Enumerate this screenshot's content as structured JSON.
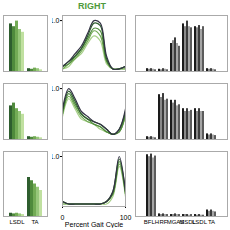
{
  "chart_data": [
    {
      "type": "bar",
      "categories": [
        "LSDL",
        "TA"
      ],
      "ylim": [
        0,
        1
      ],
      "tick_labels": false,
      "series": [
        {
          "color": "#2e5e2e",
          "values": [
            0.85,
            0.05
          ]
        },
        {
          "color": "#4f8a3c",
          "values": [
            0.8,
            0.04
          ]
        },
        {
          "color": "#73ab55",
          "values": [
            0.9,
            0.06
          ]
        },
        {
          "color": "#97c77a",
          "values": [
            0.75,
            0.05
          ]
        },
        {
          "color": "#c0e0a0",
          "values": [
            0.7,
            0.03
          ]
        }
      ]
    },
    {
      "type": "bar",
      "categories": [
        "LSDL",
        "TA"
      ],
      "ylim": [
        0,
        1
      ],
      "tick_labels": false,
      "series": [
        {
          "color": "#2e5e2e",
          "values": [
            0.6,
            0.05
          ]
        },
        {
          "color": "#4f8a3c",
          "values": [
            0.65,
            0.04
          ]
        },
        {
          "color": "#73ab55",
          "values": [
            0.55,
            0.05
          ]
        },
        {
          "color": "#97c77a",
          "values": [
            0.5,
            0.04
          ]
        },
        {
          "color": "#c0e0a0",
          "values": [
            0.45,
            0.03
          ]
        }
      ]
    },
    {
      "type": "bar",
      "categories": [
        "LSDL",
        "TA"
      ],
      "ylim": [
        0,
        1
      ],
      "tick_labels": "x",
      "series": [
        {
          "color": "#2e5e2e",
          "values": [
            0.05,
            0.6
          ]
        },
        {
          "color": "#4f8a3c",
          "values": [
            0.04,
            0.55
          ]
        },
        {
          "color": "#73ab55",
          "values": [
            0.05,
            0.5
          ]
        },
        {
          "color": "#97c77a",
          "values": [
            0.04,
            0.45
          ]
        },
        {
          "color": "#c0e0a0",
          "values": [
            0.03,
            0.4
          ]
        }
      ]
    },
    {
      "type": "line",
      "title": "RIGHT",
      "x": [
        0,
        10,
        20,
        30,
        40,
        50,
        60,
        70,
        80,
        90,
        100
      ],
      "xlim": [
        0,
        100
      ],
      "ylim": [
        0,
        1.1
      ],
      "yticks": [
        1
      ],
      "tick_labels": "y",
      "series": [
        {
          "color": "#333344",
          "values": [
            0.1,
            0.2,
            0.35,
            0.5,
            0.75,
            1.0,
            0.95,
            0.3,
            0.05,
            0.05,
            0.1
          ]
        },
        {
          "color": "#2e5e2e",
          "values": [
            0.1,
            0.2,
            0.3,
            0.45,
            0.7,
            0.95,
            0.9,
            0.25,
            0.05,
            0.05,
            0.1
          ]
        },
        {
          "color": "#4f8a3c",
          "values": [
            0.1,
            0.15,
            0.3,
            0.45,
            0.65,
            0.85,
            0.8,
            0.2,
            0.05,
            0.05,
            0.1
          ]
        },
        {
          "color": "#73ab55",
          "values": [
            0.05,
            0.15,
            0.25,
            0.4,
            0.6,
            0.8,
            0.7,
            0.2,
            0.05,
            0.05,
            0.05
          ]
        },
        {
          "color": "#a8d08a",
          "values": [
            0.05,
            0.1,
            0.25,
            0.35,
            0.55,
            0.7,
            0.6,
            0.15,
            0.05,
            0.05,
            0.05
          ]
        }
      ]
    },
    {
      "type": "line",
      "x": [
        0,
        10,
        20,
        30,
        40,
        50,
        60,
        70,
        80,
        90,
        100
      ],
      "xlim": [
        0,
        100
      ],
      "ylim": [
        0,
        1.1
      ],
      "yticks": [
        1
      ],
      "tick_labels": "y",
      "series": [
        {
          "color": "#333344",
          "values": [
            0.6,
            1.0,
            0.8,
            0.55,
            0.45,
            0.35,
            0.3,
            0.2,
            0.1,
            0.2,
            0.6
          ]
        },
        {
          "color": "#2e5e2e",
          "values": [
            0.55,
            0.95,
            0.75,
            0.5,
            0.4,
            0.35,
            0.3,
            0.2,
            0.1,
            0.2,
            0.55
          ]
        },
        {
          "color": "#4f8a3c",
          "values": [
            0.5,
            0.9,
            0.7,
            0.5,
            0.4,
            0.3,
            0.25,
            0.15,
            0.1,
            0.15,
            0.5
          ]
        },
        {
          "color": "#73ab55",
          "values": [
            0.5,
            0.85,
            0.65,
            0.45,
            0.35,
            0.3,
            0.25,
            0.15,
            0.1,
            0.15,
            0.5
          ]
        },
        {
          "color": "#a8d08a",
          "values": [
            0.45,
            0.8,
            0.6,
            0.4,
            0.35,
            0.3,
            0.2,
            0.15,
            0.1,
            0.15,
            0.45
          ]
        }
      ]
    },
    {
      "type": "line",
      "x": [
        0,
        10,
        20,
        30,
        40,
        50,
        60,
        70,
        80,
        90,
        100
      ],
      "xlim": [
        0,
        100
      ],
      "xticks": [
        0,
        100
      ],
      "xlabel": "Percent Gait Cycle",
      "ylim": [
        0,
        1.1
      ],
      "yticks": [
        1
      ],
      "series": [
        {
          "color": "#333344",
          "values": [
            0.1,
            0.05,
            0.05,
            0.05,
            0.05,
            0.05,
            0.05,
            0.1,
            0.3,
            1.0,
            0.3
          ]
        },
        {
          "color": "#2e5e2e",
          "values": [
            0.1,
            0.05,
            0.05,
            0.05,
            0.05,
            0.05,
            0.05,
            0.1,
            0.3,
            0.95,
            0.3
          ]
        },
        {
          "color": "#4f8a3c",
          "values": [
            0.1,
            0.05,
            0.05,
            0.05,
            0.05,
            0.05,
            0.05,
            0.1,
            0.25,
            0.9,
            0.25
          ]
        },
        {
          "color": "#73ab55",
          "values": [
            0.05,
            0.05,
            0.05,
            0.05,
            0.05,
            0.05,
            0.05,
            0.1,
            0.25,
            0.85,
            0.25
          ]
        },
        {
          "color": "#a8d08a",
          "values": [
            0.05,
            0.05,
            0.05,
            0.05,
            0.05,
            0.05,
            0.05,
            0.05,
            0.2,
            0.8,
            0.2
          ]
        }
      ]
    },
    {
      "type": "bar",
      "categories": [
        "BFLH",
        "RF",
        "MGAS",
        "MSDL",
        "LSDL",
        "TA"
      ],
      "ylim": [
        0,
        1
      ],
      "tick_labels": false,
      "series": [
        {
          "color": "#1a1a1a",
          "values": [
            0.05,
            0.04,
            0.5,
            0.85,
            0.8,
            0.05
          ]
        },
        {
          "color": "#8a8a8a",
          "values": [
            0.04,
            0.03,
            0.55,
            0.8,
            0.78,
            0.04
          ]
        },
        {
          "color": "#3c3c3c",
          "values": [
            0.05,
            0.05,
            0.6,
            0.9,
            0.82,
            0.05
          ]
        },
        {
          "color": "#a5a5a5",
          "values": [
            0.04,
            0.04,
            0.5,
            0.8,
            0.75,
            0.04
          ]
        },
        {
          "color": "#5c5c5c",
          "values": [
            0.03,
            0.03,
            0.45,
            0.78,
            0.8,
            0.03
          ]
        }
      ]
    },
    {
      "type": "bar",
      "categories": [
        "BFLH",
        "RF",
        "MGAS",
        "MSDL",
        "LSDL",
        "TA"
      ],
      "ylim": [
        0,
        1
      ],
      "tick_labels": false,
      "series": [
        {
          "color": "#1a1a1a",
          "values": [
            0.05,
            0.8,
            0.7,
            0.55,
            0.55,
            0.1
          ]
        },
        {
          "color": "#8a8a8a",
          "values": [
            0.04,
            0.75,
            0.65,
            0.5,
            0.5,
            0.08
          ]
        },
        {
          "color": "#3c3c3c",
          "values": [
            0.05,
            0.82,
            0.7,
            0.55,
            0.55,
            0.1
          ]
        },
        {
          "color": "#a5a5a5",
          "values": [
            0.04,
            0.7,
            0.6,
            0.5,
            0.5,
            0.08
          ]
        },
        {
          "color": "#5c5c5c",
          "values": [
            0.03,
            0.72,
            0.62,
            0.52,
            0.5,
            0.07
          ]
        }
      ]
    },
    {
      "type": "bar",
      "categories": [
        "BFLH",
        "RF",
        "MGAS",
        "MSDL",
        "LSDL",
        "TA"
      ],
      "ylim": [
        0,
        1
      ],
      "tick_labels": "x",
      "series": [
        {
          "color": "#1a1a1a",
          "values": [
            0.95,
            0.04,
            0.03,
            0.03,
            0.03,
            0.1
          ]
        },
        {
          "color": "#8a8a8a",
          "values": [
            0.92,
            0.03,
            0.03,
            0.03,
            0.02,
            0.08
          ]
        },
        {
          "color": "#3c3c3c",
          "values": [
            0.96,
            0.04,
            0.04,
            0.03,
            0.03,
            0.1
          ]
        },
        {
          "color": "#a5a5a5",
          "values": [
            0.9,
            0.03,
            0.03,
            0.02,
            0.02,
            0.08
          ]
        },
        {
          "color": "#5c5c5c",
          "values": [
            0.93,
            0.03,
            0.03,
            0.03,
            0.02,
            0.07
          ]
        }
      ]
    }
  ]
}
